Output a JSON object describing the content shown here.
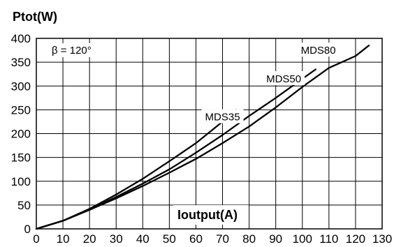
{
  "chart_data": {
    "type": "line",
    "title": "Ptot(W)",
    "xlabel": "Ioutput(A)",
    "ylabel": "Ptot(W)",
    "annotation": "β = 120°",
    "xlim": [
      0,
      130
    ],
    "ylim": [
      0,
      400
    ],
    "x_ticks": [
      0,
      10,
      20,
      30,
      40,
      50,
      60,
      70,
      80,
      90,
      100,
      110,
      120,
      130
    ],
    "y_ticks": [
      0,
      50,
      100,
      150,
      200,
      250,
      300,
      350,
      400
    ],
    "grid": true,
    "series": [
      {
        "name": "MDS35",
        "x": [
          0,
          10,
          20,
          30,
          40,
          50,
          60,
          70,
          75
        ],
        "y": [
          0,
          17,
          42,
          72,
          105,
          142,
          180,
          225,
          250
        ]
      },
      {
        "name": "MDS50",
        "x": [
          0,
          10,
          20,
          30,
          40,
          50,
          60,
          70,
          80,
          90,
          100,
          105
        ],
        "y": [
          0,
          17,
          40,
          67,
          95,
          125,
          160,
          197,
          237,
          275,
          315,
          335
        ]
      },
      {
        "name": "MDS80",
        "x": [
          0,
          10,
          20,
          30,
          40,
          50,
          60,
          70,
          80,
          90,
          100,
          110,
          120,
          125
        ],
        "y": [
          0,
          17,
          40,
          64,
          90,
          118,
          147,
          180,
          215,
          255,
          298,
          338,
          363,
          385
        ]
      }
    ]
  }
}
